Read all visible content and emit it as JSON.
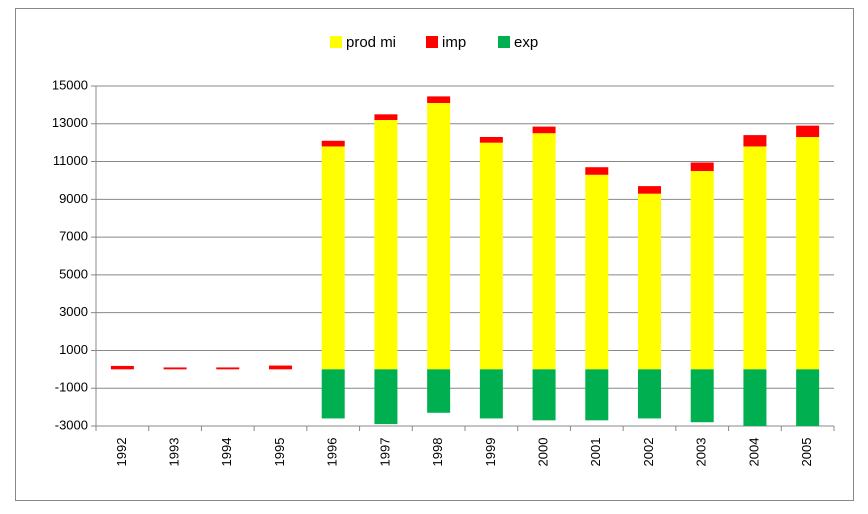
{
  "chart_data": {
    "type": "bar",
    "stacked": true,
    "categories": [
      "1992",
      "1993",
      "1994",
      "1995",
      "1996",
      "1997",
      "1998",
      "1999",
      "2000",
      "2001",
      "2002",
      "2003",
      "2004",
      "2005"
    ],
    "series": [
      {
        "name": "prod mi",
        "color": "#ffff00",
        "values": [
          0,
          0,
          0,
          0,
          11800,
          13200,
          14100,
          12000,
          12500,
          10300,
          9300,
          10500,
          11800,
          12300
        ]
      },
      {
        "name": "imp",
        "color": "#ff0000",
        "values": [
          180,
          100,
          100,
          200,
          300,
          300,
          350,
          300,
          350,
          400,
          400,
          450,
          600,
          600
        ]
      },
      {
        "name": "exp",
        "color": "#00b050",
        "values": [
          0,
          0,
          0,
          0,
          -2600,
          -2900,
          -2300,
          -2600,
          -2700,
          -2700,
          -2600,
          -2800,
          -3000,
          -3000
        ]
      }
    ],
    "ylim": [
      -3000,
      15000
    ],
    "yticks": [
      -3000,
      -1000,
      1000,
      3000,
      5000,
      7000,
      9000,
      11000,
      13000,
      15000
    ],
    "grid": true,
    "legend": "top"
  }
}
